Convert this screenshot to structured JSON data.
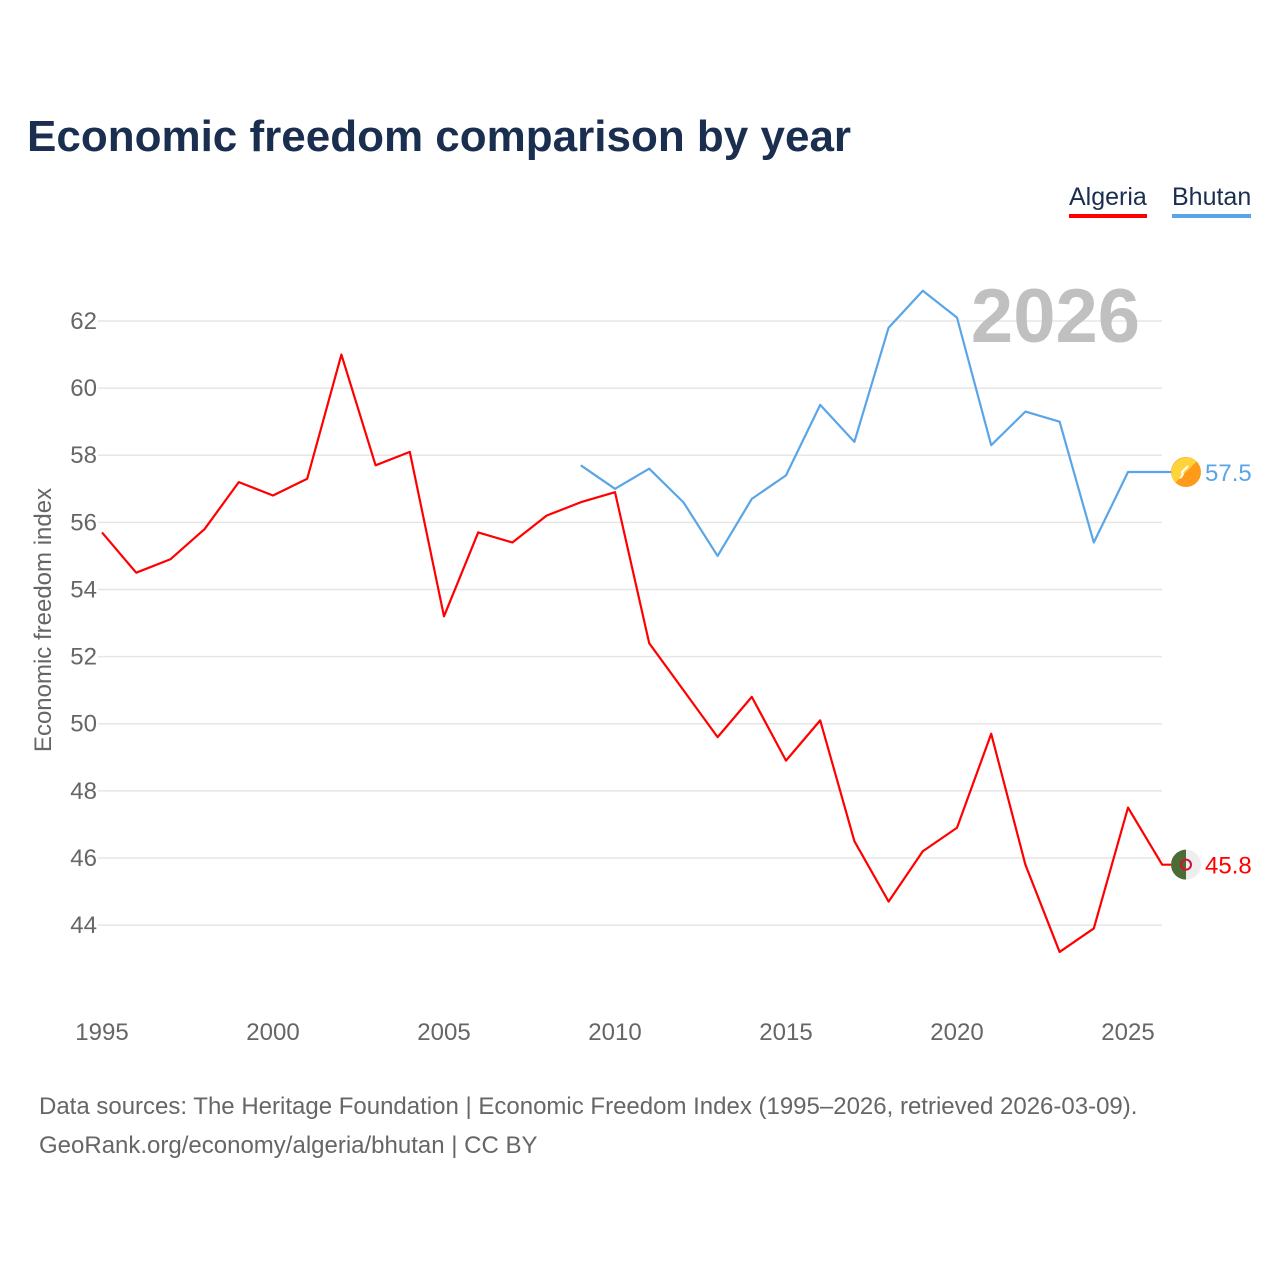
{
  "chart_data": {
    "type": "line",
    "title": "Economic freedom comparison by year",
    "ylabel": "Economic freedom index",
    "xlabel": "",
    "year_watermark": "2026",
    "xlim": [
      1995,
      2026
    ],
    "ylim": [
      42.3,
      63.5
    ],
    "xticks": [
      1995,
      2000,
      2005,
      2010,
      2015,
      2020,
      2025
    ],
    "yticks": [
      44,
      46,
      48,
      50,
      52,
      54,
      56,
      58,
      60,
      62
    ],
    "grid": true,
    "legend_position": "top-right",
    "series": [
      {
        "name": "Algeria",
        "color": "#ff0000",
        "flag_icon": "algeria-flag-icon",
        "end_label": "45.8",
        "x": [
          1995,
          1996,
          1997,
          1998,
          1999,
          2000,
          2001,
          2002,
          2003,
          2004,
          2005,
          2006,
          2007,
          2008,
          2009,
          2010,
          2011,
          2012,
          2013,
          2014,
          2015,
          2016,
          2017,
          2018,
          2019,
          2020,
          2021,
          2022,
          2023,
          2024,
          2025,
          2026
        ],
        "values": [
          55.7,
          54.5,
          54.9,
          55.8,
          57.2,
          56.8,
          57.3,
          61.0,
          57.7,
          58.1,
          53.2,
          55.7,
          55.4,
          56.2,
          56.6,
          56.9,
          52.4,
          51.0,
          49.6,
          50.8,
          48.9,
          50.1,
          46.5,
          44.7,
          46.2,
          46.9,
          49.7,
          45.8,
          43.2,
          43.9,
          47.5,
          45.8
        ]
      },
      {
        "name": "Bhutan",
        "color": "#5aa5e8",
        "flag_icon": "bhutan-flag-icon",
        "end_label": "57.5",
        "x": [
          2009,
          2010,
          2011,
          2012,
          2013,
          2014,
          2015,
          2016,
          2017,
          2018,
          2019,
          2020,
          2021,
          2022,
          2023,
          2024,
          2025,
          2026
        ],
        "values": [
          57.7,
          57.0,
          57.6,
          56.6,
          55.0,
          56.7,
          57.4,
          59.5,
          58.4,
          61.8,
          62.9,
          62.1,
          58.3,
          59.3,
          59.0,
          55.4,
          57.5,
          57.5
        ]
      }
    ]
  },
  "source": {
    "line1": "Data sources: The Heritage Foundation | Economic Freedom Index (1995–2026, retrieved 2026-03-09).",
    "line2": "GeoRank.org/economy/algeria/bhutan | CC BY"
  }
}
